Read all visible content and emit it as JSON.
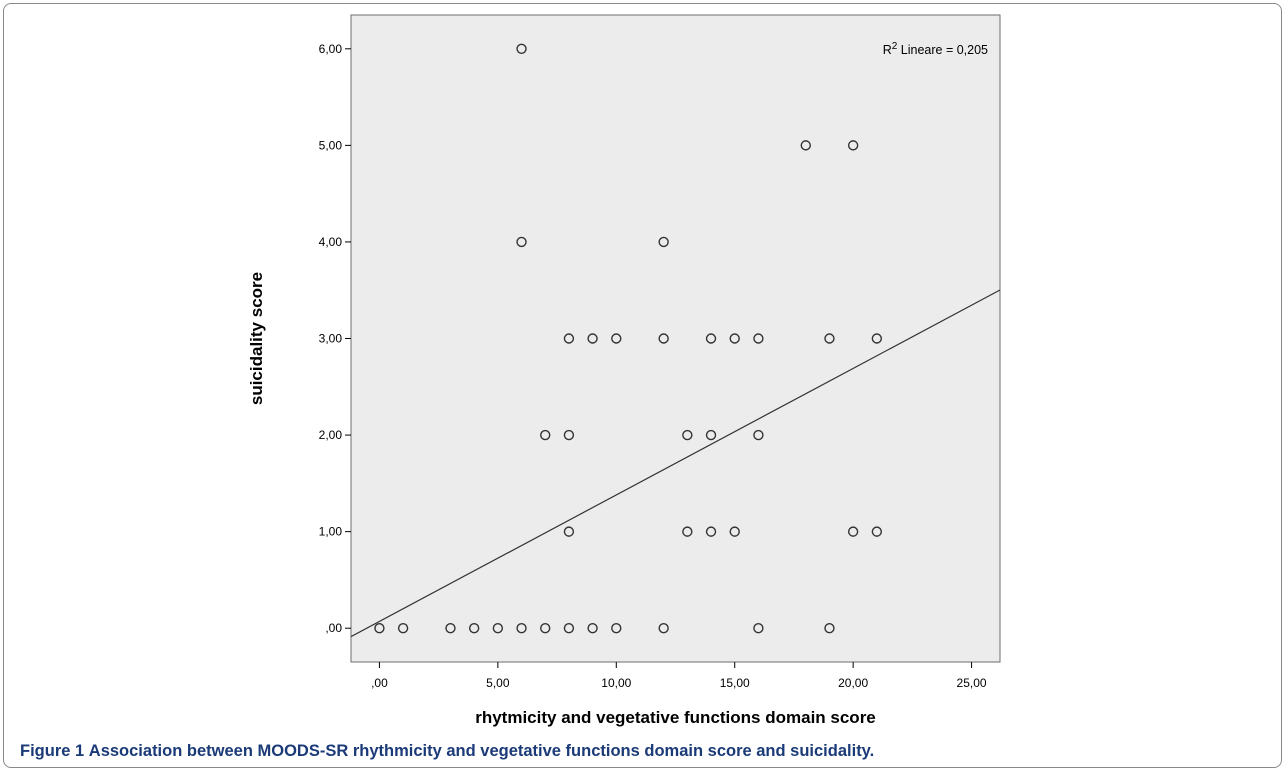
{
  "figure": {
    "label": "Figure 1",
    "caption": "Association between MOODS-SR rhythmicity and vegetative functions domain score and suicidality."
  },
  "chart_data": {
    "type": "scatter",
    "xlabel": "rhytmicity and vegetative functions domain score",
    "ylabel": "suicidality score",
    "xlim": [
      -1.2,
      26.2
    ],
    "ylim": [
      -0.35,
      6.35
    ],
    "xticks": [
      0,
      5,
      10,
      15,
      20,
      25
    ],
    "xtick_labels": [
      ",00",
      "5,00",
      "10,00",
      "15,00",
      "20,00",
      "25,00"
    ],
    "yticks": [
      0,
      1,
      2,
      3,
      4,
      5,
      6
    ],
    "ytick_labels": [
      ",00",
      "1,00",
      "2,00",
      "3,00",
      "4,00",
      "5,00",
      "6,00"
    ],
    "points": [
      [
        0,
        0
      ],
      [
        1,
        0
      ],
      [
        3,
        0
      ],
      [
        4,
        0
      ],
      [
        5,
        0
      ],
      [
        6,
        0
      ],
      [
        7,
        0
      ],
      [
        8,
        0
      ],
      [
        9,
        0
      ],
      [
        10,
        0
      ],
      [
        12,
        0
      ],
      [
        16,
        0
      ],
      [
        19,
        0
      ],
      [
        8,
        1
      ],
      [
        13,
        1
      ],
      [
        14,
        1
      ],
      [
        15,
        1
      ],
      [
        20,
        1
      ],
      [
        21,
        1
      ],
      [
        7,
        2
      ],
      [
        8,
        2
      ],
      [
        13,
        2
      ],
      [
        14,
        2
      ],
      [
        16,
        2
      ],
      [
        8,
        3
      ],
      [
        9,
        3
      ],
      [
        10,
        3
      ],
      [
        12,
        3
      ],
      [
        14,
        3
      ],
      [
        15,
        3
      ],
      [
        16,
        3
      ],
      [
        19,
        3
      ],
      [
        21,
        3
      ],
      [
        6,
        4
      ],
      [
        12,
        4
      ],
      [
        18,
        5
      ],
      [
        20,
        5
      ],
      [
        6,
        6
      ]
    ],
    "fit_line": {
      "intercept": 0.07,
      "slope": 0.131
    },
    "annotation": {
      "prefix": "R",
      "superscript": "2",
      "text": " Lineare = 0,205"
    },
    "grid": false,
    "plot_background": "#ececec",
    "marker_color": "#333333",
    "line_color": "#333333"
  }
}
